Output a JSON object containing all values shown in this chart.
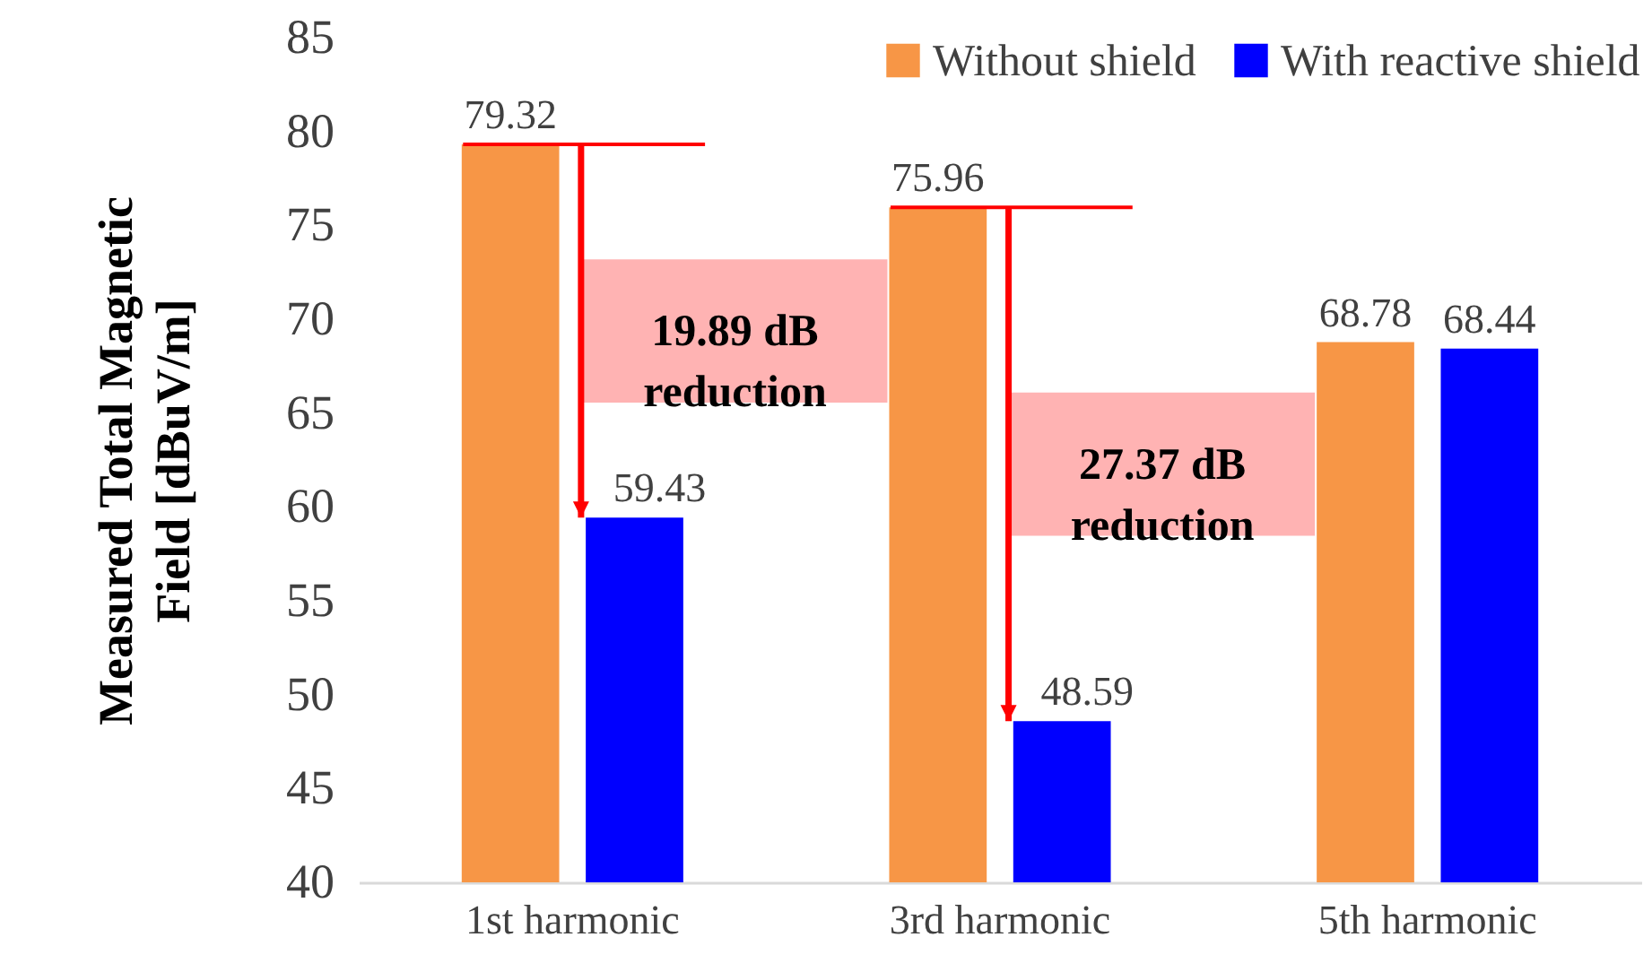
{
  "chart_data": {
    "type": "bar",
    "categories": [
      "1st harmonic",
      "3rd harmonic",
      "5th harmonic"
    ],
    "ylabel": "Measured Total Magnetic Field [dBuV/m]",
    "series": [
      {
        "name": "Without shield",
        "color": "#f79646",
        "values": [
          79.32,
          75.96,
          68.78
        ]
      },
      {
        "name": "With reactive shield",
        "color": "#0000ff",
        "values": [
          59.43,
          48.59,
          68.44
        ]
      }
    ],
    "ylim": [
      40,
      85
    ],
    "yticks": [
      40,
      45,
      50,
      55,
      60,
      65,
      70,
      75,
      80,
      85
    ],
    "data_labels": true,
    "legend": "top right",
    "grid": false,
    "annotations": [
      "19.89 dB reduction",
      "27.37 dB reduction"
    ]
  }
}
